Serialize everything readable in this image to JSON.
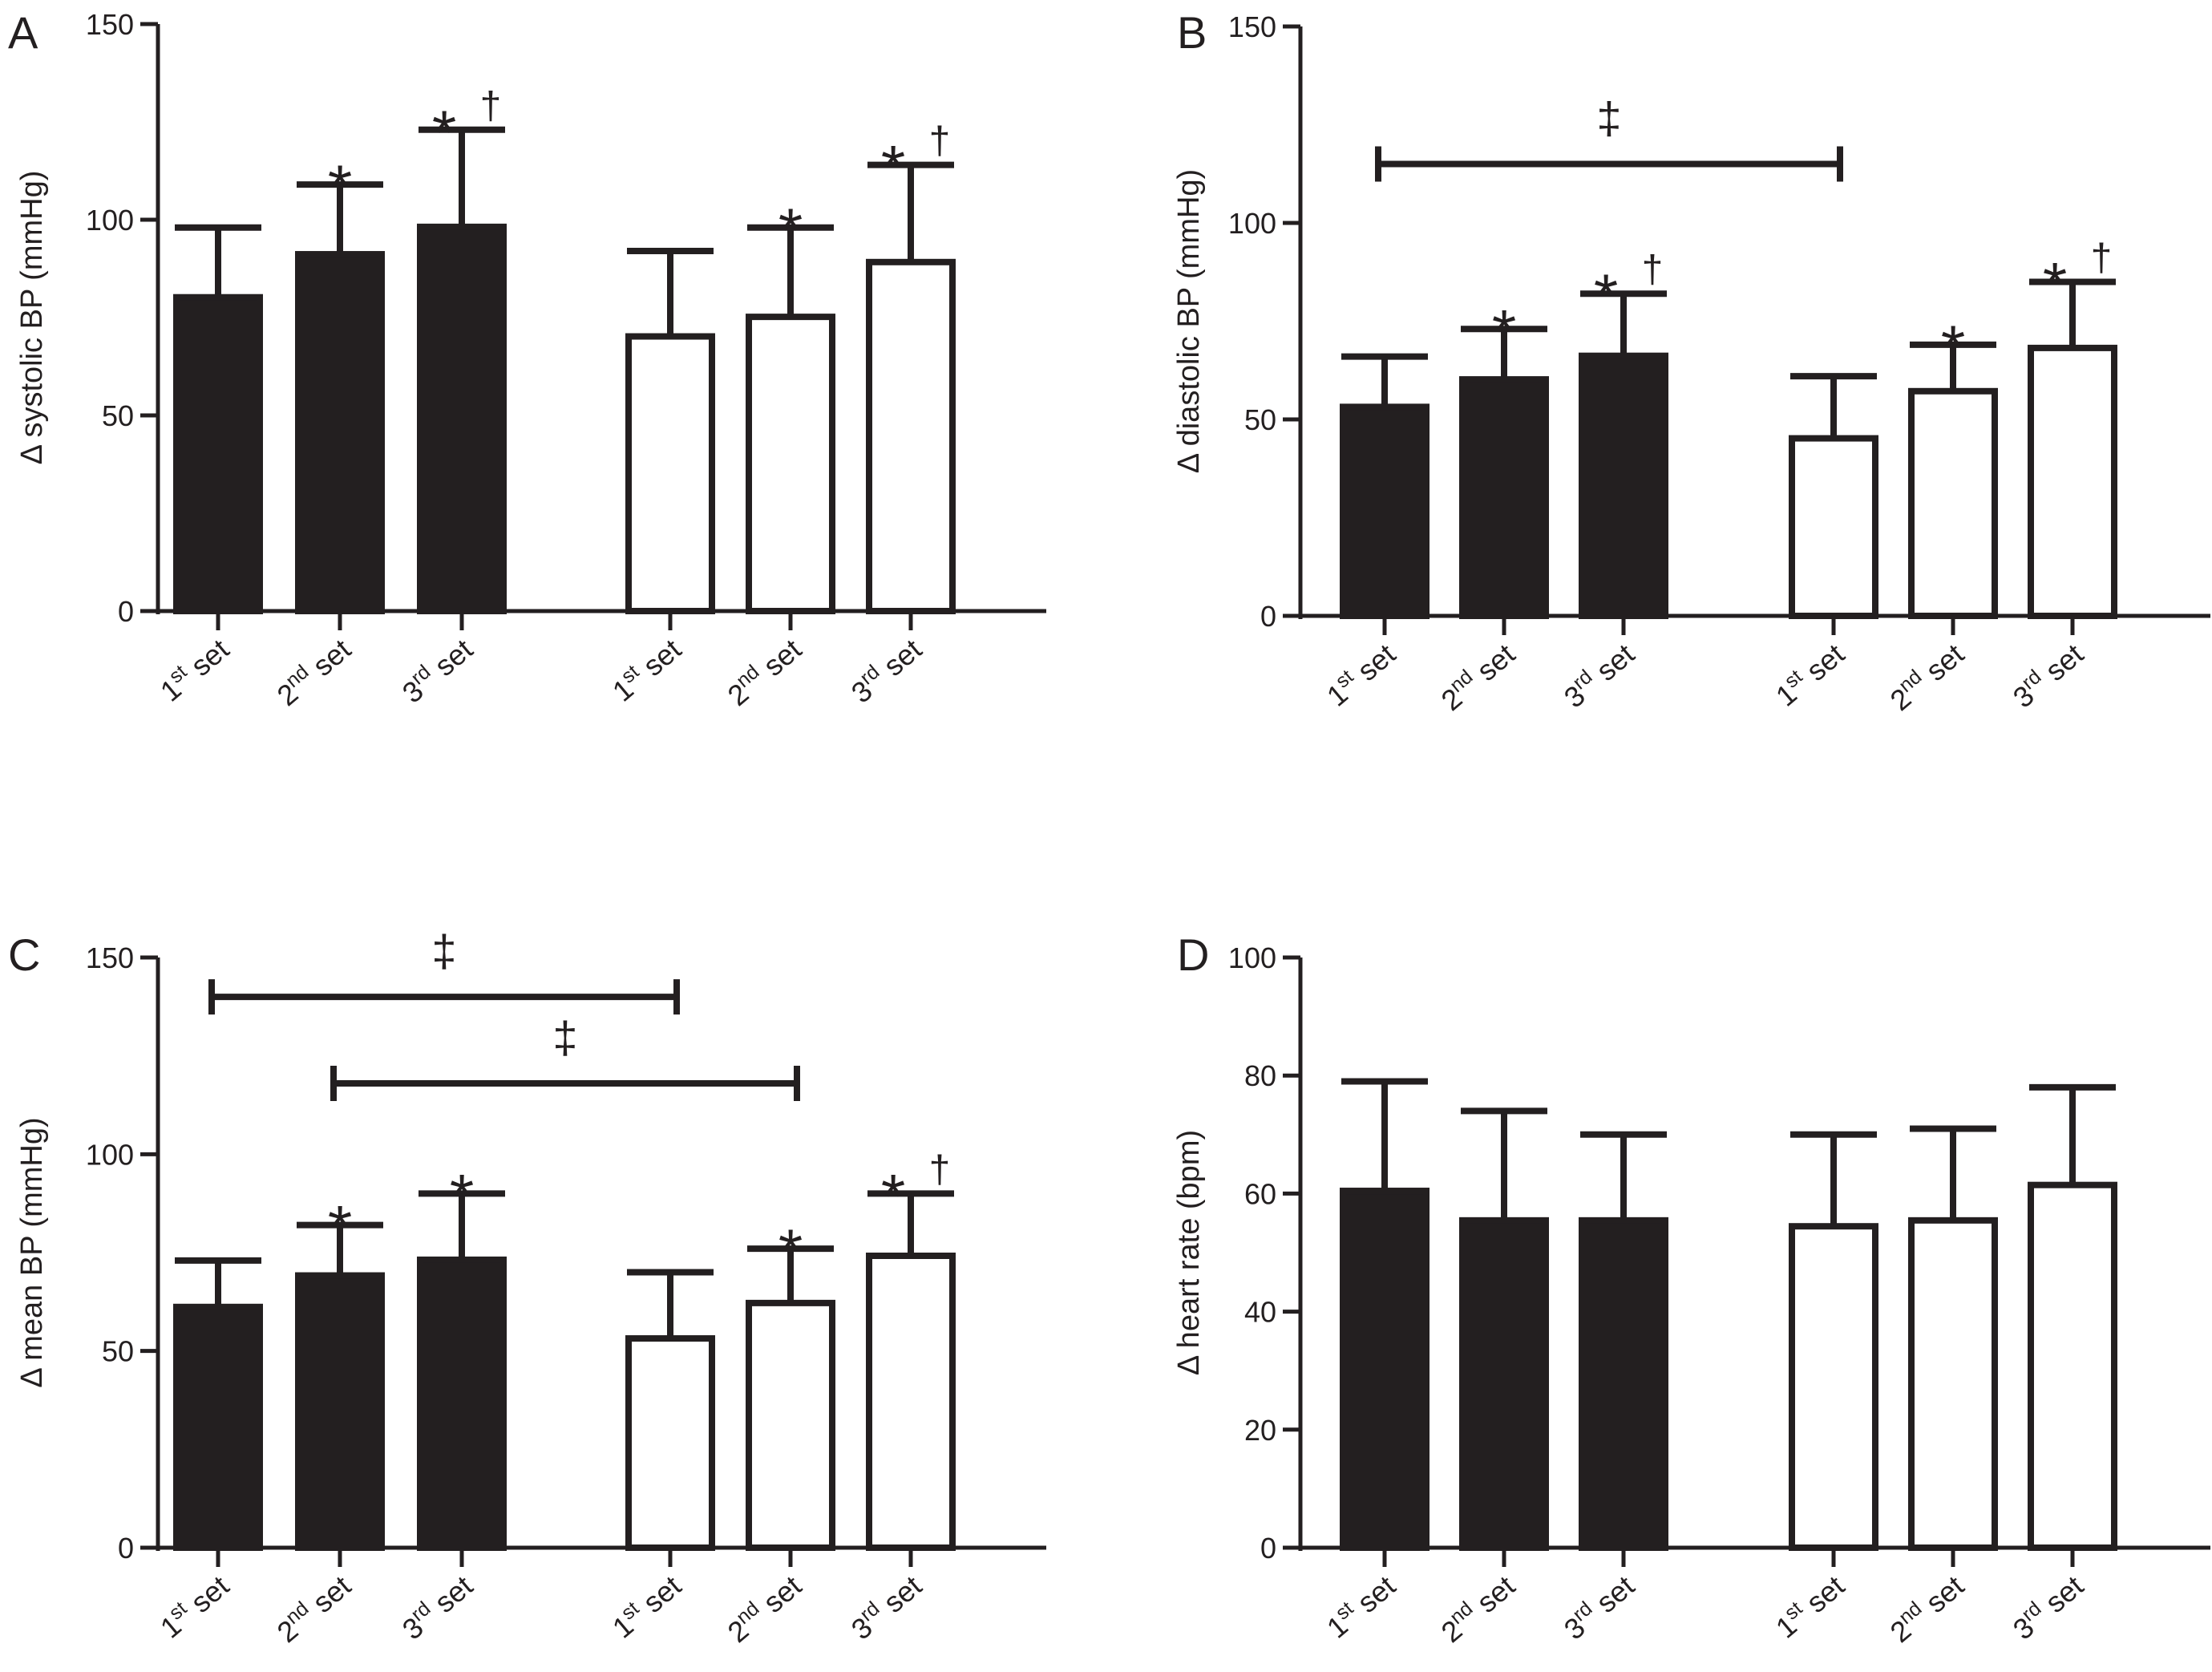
{
  "colors": {
    "ink": "#231f20",
    "filled_bar": "#231f20",
    "open_bar": "#ffffff",
    "background": "#ffffff"
  },
  "chart_data": [
    {
      "type": "bar",
      "panel": "A",
      "ylabel": "Δ systolic BP (mmHg)",
      "ylim": [
        0,
        150
      ],
      "yticks": [
        "0",
        "50",
        "100",
        "150"
      ],
      "categories": [
        {
          "base": "1",
          "sup": "st",
          "rest": " set"
        },
        {
          "base": "2",
          "sup": "nd",
          "rest": " set"
        },
        {
          "base": "3",
          "sup": "rd",
          "rest": " set"
        },
        {
          "base": "1",
          "sup": "st",
          "rest": " set"
        },
        {
          "base": "2",
          "sup": "nd",
          "rest": " set"
        },
        {
          "base": "3",
          "sup": "rd",
          "rest": " set"
        }
      ],
      "values": [
        81,
        92,
        99,
        71,
        76,
        90
      ],
      "errors": [
        17,
        17,
        24,
        21,
        22,
        24
      ],
      "fills": [
        "filled",
        "filled",
        "filled",
        "open",
        "open",
        "open"
      ],
      "annotations": [
        {
          "bar": 1,
          "symbols": [
            "*"
          ]
        },
        {
          "bar": 2,
          "symbols": [
            "*",
            "†"
          ]
        },
        {
          "bar": 4,
          "symbols": [
            "*"
          ]
        },
        {
          "bar": 5,
          "symbols": [
            "*",
            "†"
          ]
        }
      ],
      "brackets": []
    },
    {
      "type": "bar",
      "panel": "B",
      "ylabel": "Δ diastolic BP (mmHg)",
      "ylim": [
        0,
        150
      ],
      "yticks": [
        "0",
        "50",
        "100",
        "150"
      ],
      "categories": [
        {
          "base": "1",
          "sup": "st",
          "rest": " set"
        },
        {
          "base": "2",
          "sup": "nd",
          "rest": " set"
        },
        {
          "base": "3",
          "sup": "rd",
          "rest": " set"
        },
        {
          "base": "1",
          "sup": "st",
          "rest": " set"
        },
        {
          "base": "2",
          "sup": "nd",
          "rest": " set"
        },
        {
          "base": "3",
          "sup": "rd",
          "rest": " set"
        }
      ],
      "values": [
        54,
        61,
        67,
        46,
        58,
        69
      ],
      "errors": [
        12,
        12,
        15,
        15,
        11,
        16
      ],
      "fills": [
        "filled",
        "filled",
        "filled",
        "open",
        "open",
        "open"
      ],
      "annotations": [
        {
          "bar": 1,
          "symbols": [
            "*"
          ]
        },
        {
          "bar": 2,
          "symbols": [
            "*",
            "†"
          ]
        },
        {
          "bar": 4,
          "symbols": [
            "*"
          ]
        },
        {
          "bar": 5,
          "symbols": [
            "*",
            "†"
          ]
        }
      ],
      "brackets": [
        {
          "from": 0,
          "to": 3,
          "y": 115,
          "symbol": "‡"
        }
      ]
    },
    {
      "type": "bar",
      "panel": "C",
      "ylabel": "Δ mean BP (mmHg)",
      "ylim": [
        0,
        150
      ],
      "yticks": [
        "0",
        "50",
        "100",
        "150"
      ],
      "categories": [
        {
          "base": "1",
          "sup": "st",
          "rest": " set"
        },
        {
          "base": "2",
          "sup": "nd",
          "rest": " set"
        },
        {
          "base": "3",
          "sup": "rd",
          "rest": " set"
        },
        {
          "base": "1",
          "sup": "st",
          "rest": " set"
        },
        {
          "base": "2",
          "sup": "nd",
          "rest": " set"
        },
        {
          "base": "3",
          "sup": "rd",
          "rest": " set"
        }
      ],
      "values": [
        62,
        70,
        74,
        54,
        63,
        75
      ],
      "errors": [
        11,
        12,
        16,
        16,
        13,
        15
      ],
      "fills": [
        "filled",
        "filled",
        "filled",
        "open",
        "open",
        "open"
      ],
      "annotations": [
        {
          "bar": 1,
          "symbols": [
            "*"
          ]
        },
        {
          "bar": 2,
          "symbols": [
            "*"
          ]
        },
        {
          "bar": 4,
          "symbols": [
            "*"
          ]
        },
        {
          "bar": 5,
          "symbols": [
            "*",
            "†"
          ]
        }
      ],
      "brackets": [
        {
          "from": 0,
          "to": 3,
          "y": 140,
          "symbol": "‡"
        },
        {
          "from": 1,
          "to": 4,
          "y": 118,
          "symbol": "‡"
        }
      ]
    },
    {
      "type": "bar",
      "panel": "D",
      "ylabel": "Δ heart rate (bpm)",
      "ylim": [
        0,
        100
      ],
      "yticks": [
        "0",
        "20",
        "40",
        "60",
        "80",
        "100"
      ],
      "categories": [
        {
          "base": "1",
          "sup": "st",
          "rest": " set"
        },
        {
          "base": "2",
          "sup": "nd",
          "rest": " set"
        },
        {
          "base": "3",
          "sup": "rd",
          "rest": " set"
        },
        {
          "base": "1",
          "sup": "st",
          "rest": " set"
        },
        {
          "base": "2",
          "sup": "nd",
          "rest": " set"
        },
        {
          "base": "3",
          "sup": "rd",
          "rest": " set"
        }
      ],
      "values": [
        61,
        56,
        56,
        55,
        56,
        62
      ],
      "errors": [
        18,
        18,
        14,
        15,
        15,
        16
      ],
      "fills": [
        "filled",
        "filled",
        "filled",
        "open",
        "open",
        "open"
      ],
      "annotations": [],
      "brackets": []
    }
  ]
}
